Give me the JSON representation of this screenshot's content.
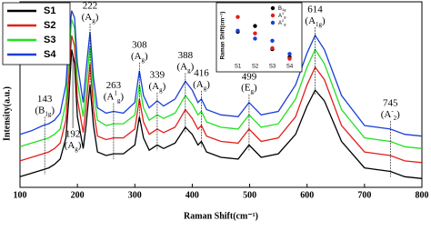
{
  "chart_data": [
    {
      "type": "line",
      "x_label": "Raman Shift(cm⁻¹)",
      "y_label": "Intensity(a.u.)",
      "x": [
        100,
        120,
        140,
        150,
        160,
        170,
        180,
        185,
        190,
        195,
        200,
        210,
        215,
        222,
        228,
        235,
        250,
        263,
        280,
        300,
        308,
        315,
        325,
        339,
        350,
        370,
        388,
        400,
        410,
        416,
        425,
        450,
        480,
        499,
        520,
        550,
        580,
        600,
        614,
        630,
        660,
        700,
        745,
        770,
        800
      ],
      "series": [
        {
          "name": "S1",
          "color": "#000000",
          "values": [
            6,
            8,
            10,
            11,
            13,
            16,
            28,
            50,
            78,
            70,
            40,
            22,
            35,
            58,
            35,
            20,
            18,
            19,
            19,
            24,
            40,
            28,
            21,
            24,
            22,
            25,
            34,
            30,
            24,
            26,
            20,
            17,
            16,
            24,
            17,
            19,
            30,
            46,
            55,
            49,
            26,
            11,
            9,
            6,
            5
          ]
        },
        {
          "name": "S2",
          "color": "#e0201c",
          "values": [
            15,
            17,
            19,
            20,
            22,
            25,
            38,
            62,
            86,
            80,
            50,
            31,
            45,
            70,
            44,
            29,
            27,
            28,
            28,
            33,
            50,
            37,
            30,
            33,
            31,
            34,
            44,
            39,
            33,
            35,
            29,
            26,
            25,
            33,
            26,
            28,
            40,
            58,
            68,
            61,
            35,
            20,
            18,
            15,
            14
          ]
        },
        {
          "name": "S3",
          "color": "#22e022",
          "values": [
            23,
            25,
            27,
            28,
            30,
            33,
            48,
            74,
            95,
            90,
            60,
            40,
            56,
            80,
            54,
            38,
            35,
            36,
            36,
            41,
            58,
            45,
            38,
            41,
            39,
            42,
            52,
            47,
            41,
            43,
            37,
            34,
            33,
            41,
            34,
            36,
            50,
            68,
            78,
            70,
            44,
            28,
            26,
            23,
            22
          ]
        },
        {
          "name": "S4",
          "color": "#1a3fd6",
          "values": [
            30,
            32,
            35,
            36,
            38,
            42,
            58,
            84,
            100,
            96,
            70,
            48,
            66,
            88,
            62,
            45,
            42,
            43,
            42,
            48,
            66,
            52,
            45,
            49,
            46,
            50,
            60,
            55,
            48,
            50,
            44,
            41,
            40,
            48,
            41,
            43,
            58,
            76,
            86,
            78,
            52,
            35,
            33,
            30,
            29
          ]
        }
      ],
      "xlim": [
        100,
        800
      ],
      "xticks": [
        100,
        200,
        300,
        400,
        500,
        600,
        700,
        800
      ],
      "ylim": [
        0,
        105
      ],
      "annotations": [
        {
          "x": 143,
          "mode": "(B",
          "sub": "1g",
          "close": ")"
        },
        {
          "x": 192,
          "mode": "(A",
          "sub": "g",
          "close": ")"
        },
        {
          "x": 222,
          "mode": "(A",
          "sub": "g",
          "close": ")"
        },
        {
          "x": 263,
          "mode": "(A",
          "sub": "g",
          "sup": "1",
          "close": ")"
        },
        {
          "x": 308,
          "mode": "(A",
          "sub": "g",
          "close": ")"
        },
        {
          "x": 339,
          "mode": "(A",
          "sub": "g",
          "close": ")"
        },
        {
          "x": 388,
          "mode": "(A",
          "sub": "g",
          "close": ")"
        },
        {
          "x": 416,
          "mode": "(A",
          "sub": "g",
          "close": ")"
        },
        {
          "x": 499,
          "mode": "(E",
          "sub": "g",
          "close": ")"
        },
        {
          "x": 614,
          "mode": "(A",
          "sub": "1g",
          "close": ")"
        },
        {
          "x": 745,
          "mode": "(A",
          "sub": "2",
          "sup": "-",
          "close": ")"
        }
      ]
    },
    {
      "type": "scatter",
      "y_label": "Raman Shift(cm⁻¹)",
      "categories": [
        "S1",
        "S2",
        "S3",
        "S4"
      ],
      "ylim": [
        0,
        10
      ],
      "series": [
        {
          "name": "B",
          "name_sub": "1g",
          "color": "#000000",
          "values": [
            5.7,
            6.8,
            2.4,
            0.9
          ]
        },
        {
          "name": "A",
          "name_sub": "g",
          "name_sup": "1",
          "color": "#e0201c",
          "values": [
            8.5,
            5.4,
            2.6,
            0.6
          ]
        },
        {
          "name": "A",
          "name_sub": "g",
          "name_sup": "2",
          "color": "#1a3fd6",
          "values": [
            5.9,
            4.4,
            4.0,
            1.5
          ]
        }
      ]
    }
  ]
}
